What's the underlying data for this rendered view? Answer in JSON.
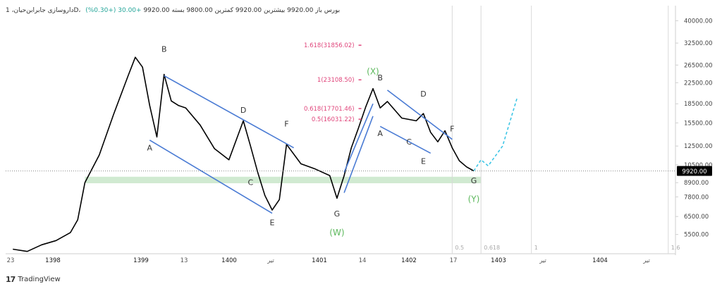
{
  "header": {
    "text": "داروسازی جابرابن‌حیان، 1D، بورس  باز 9920.00 بیشترین 9920.00 کمترین 9800.00 بسته 9920.00",
    "change": "+30.00 (+0.30%)"
  },
  "brand": {
    "name": "TradingView",
    "mark": "17"
  },
  "colors": {
    "candle": "#000000",
    "trendline": "#4a7bd4",
    "fib": "#e0457b",
    "wave_green": "#5cb85c",
    "forecast": "#3ec6e6",
    "zone": "#c8e6c9",
    "grid": "#e6e6e6",
    "last_price_bg": "#000000",
    "dot": "#f2b51c"
  },
  "chart_data": {
    "type": "line",
    "yscale": "log",
    "ylim": [
      4600,
      46000
    ],
    "y_ticks": [
      5500,
      6500,
      7800,
      8900,
      10500,
      12500,
      15500,
      18500,
      22500,
      26500,
      32500,
      40000
    ],
    "y_tick_labels": [
      "5500.00",
      "6500.00",
      "7800.00",
      "8900.00",
      "10500.00",
      "12500.00",
      "15500.00",
      "18500.00",
      "22500.00",
      "26500.00",
      "32500.00",
      "40000.00"
    ],
    "x_ticks": [
      "23",
      "1398",
      "1399",
      "13",
      "1400",
      "تیر",
      "1401",
      "14",
      "1402",
      "17",
      "1403",
      "تیر",
      "1404",
      "تیر"
    ],
    "last_price": 9920,
    "last_price_label": "9920.00",
    "series": [
      {
        "x": [
          "1397-05",
          "1397-07",
          "1397-09",
          "1397-11",
          "1398-01",
          "1398-02",
          "1398-03",
          "1398-05",
          "1398-07",
          "1398-09",
          "1398-10",
          "1398-11",
          "1398-12",
          "1399-01",
          "1399-02",
          "1399-03",
          "1399-04",
          "1399-05",
          "1399-07",
          "1399-09",
          "1399-11",
          "1400-01",
          "1400-02",
          "1400-03",
          "1400-04",
          "1400-05",
          "1400-06",
          "1400-07",
          "1400-09",
          "1400-11",
          "1401-01",
          "1401-02",
          "1401-03",
          "1401-04",
          "1401-05",
          "1401-06",
          "1401-07",
          "1401-08",
          "1401-09",
          "1401-11",
          "1402-01",
          "1402-02",
          "1402-03",
          "1402-04",
          "1402-05",
          "1402-06",
          "1402-07",
          "1402-08",
          "1402-09"
        ],
        "values": [
          4800,
          4700,
          5000,
          5200,
          5600,
          6300,
          8900,
          11500,
          16800,
          24000,
          28500,
          26000,
          18200,
          13600,
          24300,
          19000,
          18200,
          17800,
          15200,
          12200,
          11000,
          15800,
          12500,
          9800,
          7900,
          6900,
          7600,
          12700,
          10600,
          10100,
          9500,
          7700,
          9500,
          12300,
          14800,
          18000,
          21300,
          17800,
          18900,
          16200,
          15800,
          16900,
          14200,
          13000,
          14400,
          12300,
          10900,
          10300,
          9920
        ]
      }
    ],
    "zone": {
      "low": 8850,
      "high": 9400,
      "from": "1398-03",
      "to": "1402-10"
    },
    "fib_levels": [
      {
        "label": "1.618(31856.02)",
        "value": 31856.02
      },
      {
        "label": "1(23108.50)",
        "value": 23108.5
      },
      {
        "label": "0.618(17701.46)",
        "value": 17701.46
      },
      {
        "label": "0.5(16031.22)",
        "value": 16031.22
      }
    ],
    "waves": [
      {
        "label": "B",
        "x": "1399-02",
        "y": 30000
      },
      {
        "label": "A",
        "x": "1398-12",
        "y": 12000
      },
      {
        "label": "D",
        "x": "1400-01",
        "y": 17000
      },
      {
        "label": "C",
        "x": "1400-02",
        "y": 8700
      },
      {
        "label": "F",
        "x": "1400-07",
        "y": 15000
      },
      {
        "label": "E",
        "x": "1400-05",
        "y": 6000
      },
      {
        "label": "G",
        "x": "1401-02",
        "y": 6500
      },
      {
        "label": "(W)",
        "x": "1401-02",
        "y": 5450,
        "color": "green"
      },
      {
        "label": "(X)",
        "x": "1401-07",
        "y": 24300,
        "color": "green"
      },
      {
        "label": "B",
        "x": "1401-08",
        "y": 23000
      },
      {
        "label": "A",
        "x": "1401-08",
        "y": 13700
      },
      {
        "label": "D",
        "x": "1402-02",
        "y": 19800
      },
      {
        "label": "C",
        "x": "1401-12",
        "y": 12700
      },
      {
        "label": "F",
        "x": "1402-06",
        "y": 14300
      },
      {
        "label": "E",
        "x": "1402-02",
        "y": 10600
      },
      {
        "label": "G",
        "x": "1402-09",
        "y": 8850
      },
      {
        "label": "(Y)",
        "x": "1402-09",
        "y": 7450,
        "color": "green"
      }
    ],
    "time_zones": [
      {
        "label": "0.5",
        "x": "1402-06"
      },
      {
        "label": "0.618",
        "x": "1402-10"
      },
      {
        "label": "1",
        "x": "1403-05"
      },
      {
        "label": "1.6",
        "x": "1404-12"
      }
    ],
    "forecast": {
      "x": [
        "1402-09",
        "1402-10",
        "1402-11",
        "1403-01",
        "1403-03"
      ],
      "values": [
        9920,
        11000,
        10400,
        12500,
        19500
      ]
    },
    "grid": true
  }
}
